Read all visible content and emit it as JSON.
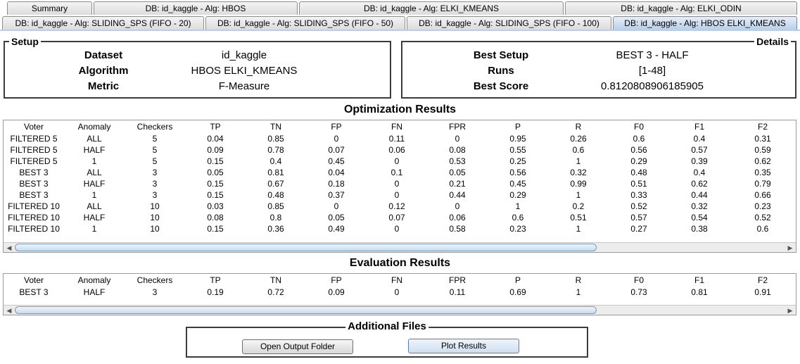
{
  "tabs_row1": [
    "Summary",
    "DB: id_kaggle - Alg: HBOS",
    "DB: id_kaggle - Alg: ELKI_KMEANS",
    "DB: id_kaggle - Alg: ELKI_ODIN"
  ],
  "tabs_row2": [
    "DB: id_kaggle - Alg: SLIDING_SPS (FIFO - 20)",
    "DB: id_kaggle - Alg: SLIDING_SPS (FIFO - 50)",
    "DB: id_kaggle - Alg: SLIDING_SPS (FIFO - 100)",
    "DB: id_kaggle - Alg: HBOS ELKI_KMEANS"
  ],
  "setup": {
    "title": "Setup",
    "rows": [
      {
        "key": "Dataset",
        "value": "id_kaggle"
      },
      {
        "key": "Algorithm",
        "value": "HBOS ELKI_KMEANS"
      },
      {
        "key": "Metric",
        "value": "F-Measure"
      }
    ]
  },
  "details": {
    "title": "Details",
    "rows": [
      {
        "key": "Best Setup",
        "value": "BEST 3 - HALF"
      },
      {
        "key": "Runs",
        "value": "[1-48]"
      },
      {
        "key": "Best Score",
        "value": "0.8120808906185905"
      }
    ]
  },
  "optimization": {
    "title": "Optimization Results",
    "columns": [
      "Voter",
      "Anomaly",
      "Checkers",
      "TP",
      "TN",
      "FP",
      "FN",
      "FPR",
      "P",
      "R",
      "F0",
      "F1",
      "F2"
    ],
    "rows": [
      [
        "FILTERED 5",
        "ALL",
        "5",
        "0.04",
        "0.85",
        "0",
        "0.11",
        "0",
        "0.95",
        "0.26",
        "0.6",
        "0.4",
        "0.31"
      ],
      [
        "FILTERED 5",
        "HALF",
        "5",
        "0.09",
        "0.78",
        "0.07",
        "0.06",
        "0.08",
        "0.55",
        "0.6",
        "0.56",
        "0.57",
        "0.59"
      ],
      [
        "FILTERED 5",
        "1",
        "5",
        "0.15",
        "0.4",
        "0.45",
        "0",
        "0.53",
        "0.25",
        "1",
        "0.29",
        "0.39",
        "0.62"
      ],
      [
        "BEST 3",
        "ALL",
        "3",
        "0.05",
        "0.81",
        "0.04",
        "0.1",
        "0.05",
        "0.56",
        "0.32",
        "0.48",
        "0.4",
        "0.35"
      ],
      [
        "BEST 3",
        "HALF",
        "3",
        "0.15",
        "0.67",
        "0.18",
        "0",
        "0.21",
        "0.45",
        "0.99",
        "0.51",
        "0.62",
        "0.79"
      ],
      [
        "BEST 3",
        "1",
        "3",
        "0.15",
        "0.48",
        "0.37",
        "0",
        "0.44",
        "0.29",
        "1",
        "0.33",
        "0.44",
        "0.66"
      ],
      [
        "FILTERED 10",
        "ALL",
        "10",
        "0.03",
        "0.85",
        "0",
        "0.12",
        "0",
        "1",
        "0.2",
        "0.52",
        "0.32",
        "0.23"
      ],
      [
        "FILTERED 10",
        "HALF",
        "10",
        "0.08",
        "0.8",
        "0.05",
        "0.07",
        "0.06",
        "0.6",
        "0.51",
        "0.57",
        "0.54",
        "0.52"
      ],
      [
        "FILTERED 10",
        "1",
        "10",
        "0.15",
        "0.36",
        "0.49",
        "0",
        "0.58",
        "0.23",
        "1",
        "0.27",
        "0.38",
        "0.6"
      ]
    ]
  },
  "evaluation": {
    "title": "Evaluation Results",
    "columns": [
      "Voter",
      "Anomaly",
      "Checkers",
      "TP",
      "TN",
      "FP",
      "FN",
      "FPR",
      "P",
      "R",
      "F0",
      "F1",
      "F2"
    ],
    "rows": [
      [
        "BEST 3",
        "HALF",
        "3",
        "0.19",
        "0.72",
        "0.09",
        "0",
        "0.11",
        "0.69",
        "1",
        "0.73",
        "0.81",
        "0.91"
      ]
    ]
  },
  "additional": {
    "title": "Additional Files",
    "open_label": "Open Output Folder",
    "plot_label": "Plot Results"
  },
  "icons": {
    "scroll_left": "arrow-left-icon",
    "scroll_right": "arrow-right-icon"
  }
}
